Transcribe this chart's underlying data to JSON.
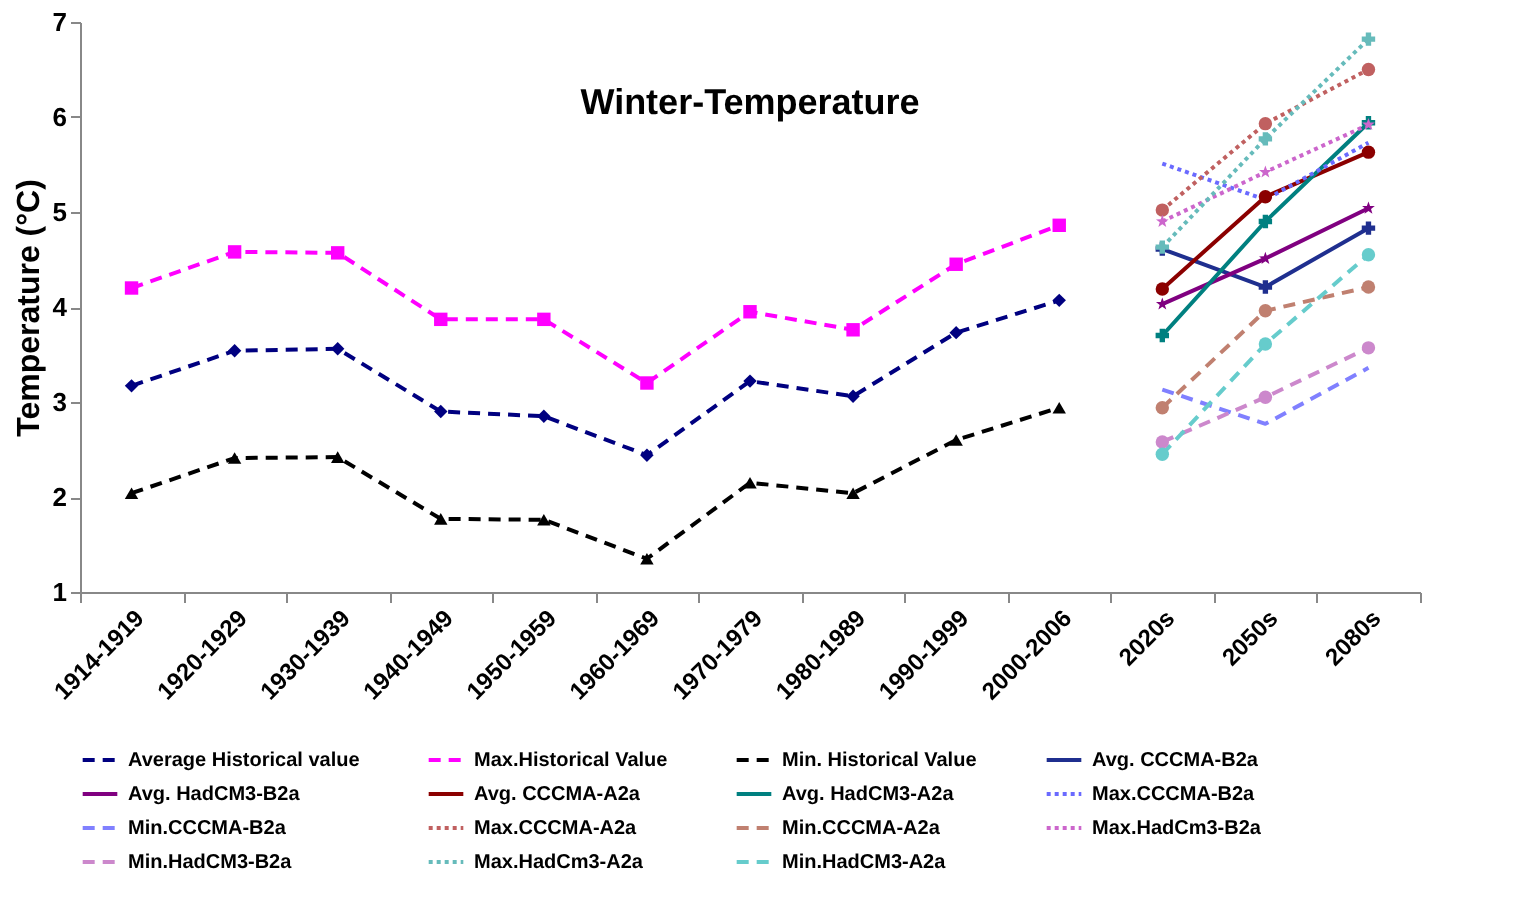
{
  "chart_data": {
    "type": "line",
    "title": "Winter-Temperature",
    "ylabel": "Temperature (°C)",
    "categories": [
      "1914-1919",
      "1920-1929",
      "1930-1939",
      "1940-1949",
      "1950-1959",
      "1960-1969",
      "1970-1979",
      "1980-1989",
      "1990-1999",
      "2000-2006",
      "2020s",
      "2050s",
      "2080s"
    ],
    "ylim": [
      1,
      7
    ],
    "yticks": [
      1,
      2,
      3,
      4,
      5,
      6,
      7
    ],
    "grid": false,
    "legend": "bottom",
    "series": [
      {
        "name": "Average Historical value",
        "color": "#000080",
        "line_style": "dashed",
        "marker": "diamond",
        "values": [
          3.17,
          3.54,
          3.56,
          2.9,
          2.85,
          2.44,
          3.22,
          3.06,
          3.73,
          4.07,
          null,
          null,
          null
        ]
      },
      {
        "name": "Max.Historical Value",
        "color": "#ff00ff",
        "line_style": "dashed",
        "marker": "square",
        "values": [
          4.2,
          4.58,
          4.57,
          3.87,
          3.87,
          3.2,
          3.95,
          3.76,
          4.45,
          4.86,
          null,
          null,
          null
        ]
      },
      {
        "name": "Min. Historical Value",
        "color": "#000000",
        "line_style": "dashed",
        "marker": "triangle",
        "values": [
          2.04,
          2.41,
          2.42,
          1.77,
          1.76,
          1.35,
          2.15,
          2.04,
          2.6,
          2.94,
          null,
          null,
          null
        ]
      },
      {
        "name": "Avg. CCCMA-B2a",
        "color": "#1f2f8f",
        "line_style": "solid",
        "marker": "cross",
        "values": [
          null,
          null,
          null,
          null,
          null,
          null,
          null,
          null,
          null,
          null,
          4.61,
          4.21,
          4.83
        ]
      },
      {
        "name": "Avg. HadCM3-B2a",
        "color": "#800080",
        "line_style": "solid",
        "marker": "star",
        "values": [
          null,
          null,
          null,
          null,
          null,
          null,
          null,
          null,
          null,
          null,
          4.03,
          4.51,
          5.04
        ]
      },
      {
        "name": "Avg. CCCMA-A2a",
        "color": "#8b0000",
        "line_style": "solid",
        "marker": "circle",
        "values": [
          null,
          null,
          null,
          null,
          null,
          null,
          null,
          null,
          null,
          null,
          4.19,
          5.16,
          5.63
        ]
      },
      {
        "name": "Avg. HadCM3-A2a",
        "color": "#008080",
        "line_style": "solid",
        "marker": "cross",
        "values": [
          null,
          null,
          null,
          null,
          null,
          null,
          null,
          null,
          null,
          null,
          3.7,
          4.9,
          5.94
        ]
      },
      {
        "name": "Max.CCCMA-B2a",
        "color": "#6a6aff",
        "line_style": "dotted",
        "marker": "none",
        "values": [
          null,
          null,
          null,
          null,
          null,
          null,
          null,
          null,
          null,
          null,
          5.51,
          5.13,
          5.73
        ]
      },
      {
        "name": "Min.CCCMA-B2a",
        "color": "#8080ff",
        "line_style": "dashed",
        "marker": "none",
        "values": [
          null,
          null,
          null,
          null,
          null,
          null,
          null,
          null,
          null,
          null,
          3.13,
          2.77,
          3.36
        ]
      },
      {
        "name": "Max.CCCMA-A2a",
        "color": "#c06060",
        "line_style": "dotted",
        "marker": "circle",
        "values": [
          null,
          null,
          null,
          null,
          null,
          null,
          null,
          null,
          null,
          null,
          5.02,
          5.93,
          6.5
        ]
      },
      {
        "name": "Min.CCCMA-A2a",
        "color": "#c08070",
        "line_style": "dashed",
        "marker": "circle",
        "values": [
          null,
          null,
          null,
          null,
          null,
          null,
          null,
          null,
          null,
          null,
          2.94,
          3.96,
          4.21
        ]
      },
      {
        "name": "Max.HadCm3-B2a",
        "color": "#cc66cc",
        "line_style": "dotted",
        "marker": "star",
        "values": [
          null,
          null,
          null,
          null,
          null,
          null,
          null,
          null,
          null,
          null,
          4.9,
          5.42,
          5.92
        ]
      },
      {
        "name": "Min.HadCM3-B2a",
        "color": "#cc88cc",
        "line_style": "dashed",
        "marker": "circle",
        "values": [
          null,
          null,
          null,
          null,
          null,
          null,
          null,
          null,
          null,
          null,
          2.58,
          3.05,
          3.57
        ]
      },
      {
        "name": "Max.HadCm3-A2a",
        "color": "#66bbbb",
        "line_style": "dotted",
        "marker": "cross",
        "values": [
          null,
          null,
          null,
          null,
          null,
          null,
          null,
          null,
          null,
          null,
          4.63,
          5.77,
          6.82
        ]
      },
      {
        "name": "Min.HadCM3-A2a",
        "color": "#66cccc",
        "line_style": "dashed",
        "marker": "circle",
        "values": [
          null,
          null,
          null,
          null,
          null,
          null,
          null,
          null,
          null,
          null,
          2.45,
          3.61,
          4.55
        ]
      }
    ]
  }
}
